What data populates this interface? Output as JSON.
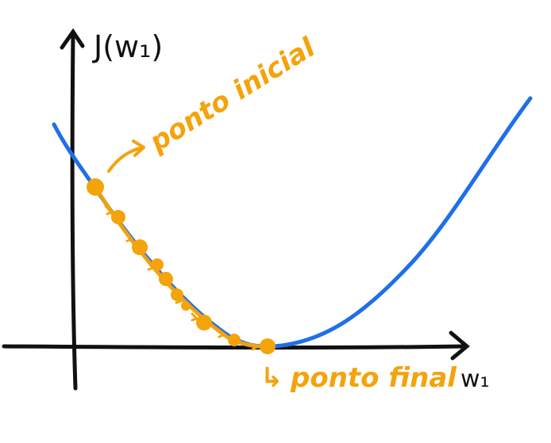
{
  "diagram": {
    "y_axis_label": "J(w₁)",
    "x_axis_label": "w₁",
    "start_label": "ponto inicial",
    "end_label": "ponto final",
    "end_prefix": "↳",
    "colors": {
      "curve": "#1f6fe8",
      "steps": "#f4a30c",
      "axes": "#111111"
    },
    "step_count": 10
  }
}
